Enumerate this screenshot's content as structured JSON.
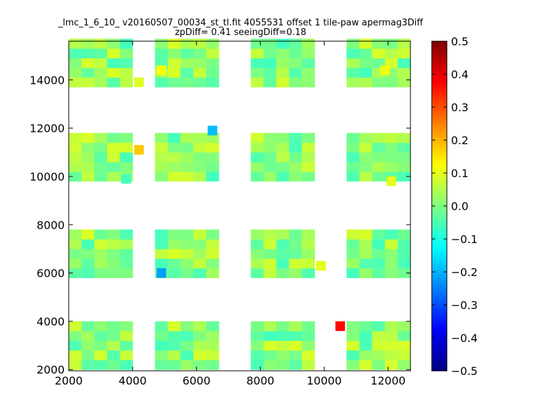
{
  "chart_data": {
    "type": "heatmap",
    "title": "_lmc_1_6_10_ v20160507_00034_st_tl.fit 4055531 offset 1 tile-paw apermag3Diff",
    "subtitle": "zpDiff= 0.41 seeingDiff=0.18",
    "xlabel": "",
    "ylabel": "",
    "xlim": [
      2000,
      12700
    ],
    "ylim": [
      1950,
      15600
    ],
    "x_ticks": [
      2000,
      4000,
      6000,
      8000,
      10000,
      12000
    ],
    "y_ticks": [
      2000,
      4000,
      6000,
      8000,
      10000,
      12000,
      14000
    ],
    "colorbar": {
      "min": -0.5,
      "max": 0.5,
      "colormap": "jet",
      "ticks": [
        "0.5",
        "0.4",
        "0.3",
        "0.2",
        "0.1",
        "0.0",
        "−0.1",
        "−0.2",
        "−0.3",
        "−0.4",
        "−0.5"
      ]
    },
    "grid": false,
    "cell_width": 400,
    "cell_height": 400,
    "detector_columns": [
      {
        "x_start": 2000,
        "n_cols": 5
      },
      {
        "x_start": 4700,
        "n_cols": 5
      },
      {
        "x_start": 7700,
        "n_cols": 5
      },
      {
        "x_start": 10700,
        "n_cols": 5
      }
    ],
    "detector_rows": [
      {
        "y_start": 2000,
        "n_rows": 5
      },
      {
        "y_start": 5800,
        "n_rows": 5
      },
      {
        "y_start": 9800,
        "n_rows": 5
      },
      {
        "y_start": 13700,
        "n_rows": 5
      }
    ],
    "typical_value_range": [
      -0.06,
      0.09
    ],
    "highlighted_cells": [
      {
        "x": 6500,
        "y": 11900,
        "value": -0.19
      },
      {
        "x": 4200,
        "y": 11100,
        "value": 0.18
      },
      {
        "x": 4900,
        "y": 6000,
        "value": -0.22
      },
      {
        "x": 10500,
        "y": 3800,
        "value": 0.37
      },
      {
        "x": 4900,
        "y": 14400,
        "value": 0.12
      },
      {
        "x": 4200,
        "y": 13900,
        "value": 0.09
      },
      {
        "x": 9900,
        "y": 6300,
        "value": 0.1
      },
      {
        "x": 12100,
        "y": 9800,
        "value": 0.1
      },
      {
        "x": 11900,
        "y": 14400,
        "value": 0.11
      },
      {
        "x": 3800,
        "y": 9900,
        "value": -0.06
      }
    ]
  }
}
